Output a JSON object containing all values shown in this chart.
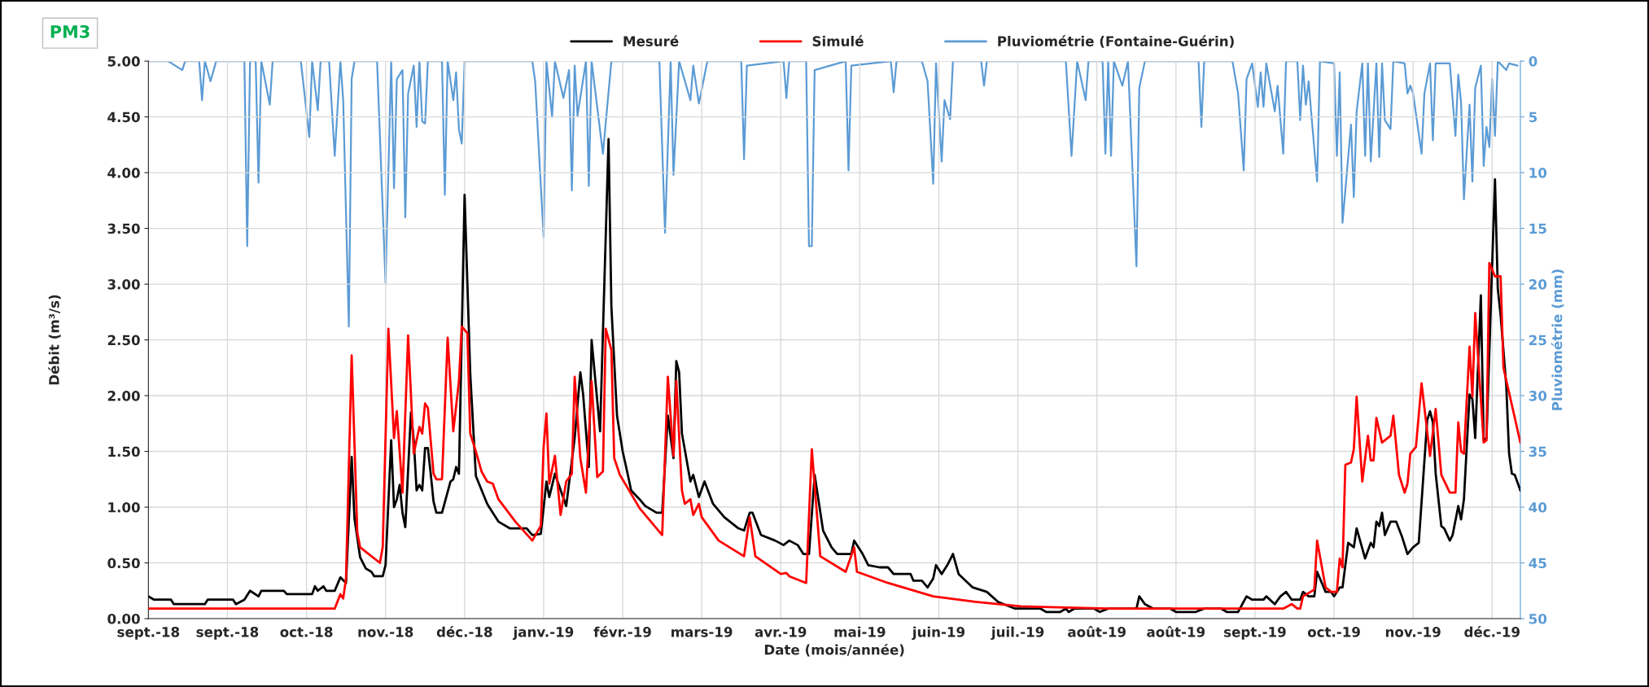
{
  "chart_data": {
    "type": "line",
    "title": "PM3",
    "xlabel": "Date (mois/année)",
    "ylabel": "Débit (m³/s)",
    "y2label": "Pluviométrie (mm)",
    "xlim": [
      "2018-09-01",
      "2019-12-31"
    ],
    "xticks": [
      {
        "value": "2018-09-01",
        "label": "sept.-18"
      },
      {
        "value": "2018-09-29",
        "label": "sept.-18"
      },
      {
        "value": "2018-10-27",
        "label": "oct.-18"
      },
      {
        "value": "2018-11-24",
        "label": "nov.-18"
      },
      {
        "value": "2018-12-22",
        "label": "déc.-18"
      },
      {
        "value": "2019-01-19",
        "label": "janv.-19"
      },
      {
        "value": "2019-02-16",
        "label": "févr.-19"
      },
      {
        "value": "2019-03-16",
        "label": "mars-19"
      },
      {
        "value": "2019-04-13",
        "label": "avr.-19"
      },
      {
        "value": "2019-05-11",
        "label": "mai-19"
      },
      {
        "value": "2019-06-08",
        "label": "juin-19"
      },
      {
        "value": "2019-07-06",
        "label": "juil.-19"
      },
      {
        "value": "2019-08-03",
        "label": "août-19"
      },
      {
        "value": "2019-08-31",
        "label": "août-19"
      },
      {
        "value": "2019-09-28",
        "label": "sept.-19"
      },
      {
        "value": "2019-10-26",
        "label": "oct.-19"
      },
      {
        "value": "2019-11-23",
        "label": "nov.-19"
      },
      {
        "value": "2019-12-21",
        "label": "déc.-19"
      }
    ],
    "ylim": [
      0,
      5
    ],
    "yticks": [
      {
        "value": 0,
        "label": "0.00"
      },
      {
        "value": 0.5,
        "label": "0.50"
      },
      {
        "value": 1,
        "label": "1.00"
      },
      {
        "value": 1.5,
        "label": "1.50"
      },
      {
        "value": 2,
        "label": "2.00"
      },
      {
        "value": 2.5,
        "label": "2.50"
      },
      {
        "value": 3,
        "label": "3.00"
      },
      {
        "value": 3.5,
        "label": "3.50"
      },
      {
        "value": 4,
        "label": "4.00"
      },
      {
        "value": 4.5,
        "label": "4.50"
      },
      {
        "value": 5,
        "label": "5.00"
      }
    ],
    "y2lim": [
      50,
      0
    ],
    "y2ticks": [
      0,
      5,
      10,
      15,
      20,
      25,
      30,
      35,
      40,
      45,
      50
    ],
    "grid": true,
    "legend": "top",
    "marker": "none",
    "line_style": "solid",
    "series": [
      {
        "name": "Mesuré",
        "color": "#000000",
        "x": [
          "2018-09-01",
          "2018-09-03",
          "2018-09-09",
          "2018-09-10",
          "2018-09-21",
          "2018-09-22",
          "2018-10-01",
          "2018-10-02",
          "2018-10-05",
          "2018-10-07",
          "2018-10-10",
          "2018-10-11",
          "2018-10-19",
          "2018-10-20",
          "2018-10-29",
          "2018-10-30",
          "2018-10-31",
          "2018-11-02",
          "2018-11-03",
          "2018-11-06",
          "2018-11-08",
          "2018-11-10",
          "2018-11-12",
          "2018-11-13",
          "2018-11-15",
          "2018-11-17",
          "2018-11-19",
          "2018-11-20",
          "2018-11-23",
          "2018-11-24",
          "2018-11-26",
          "2018-11-27",
          "2018-11-28",
          "2018-11-29",
          "2018-11-30",
          "2018-12-01",
          "2018-12-03",
          "2018-12-04",
          "2018-12-05",
          "2018-12-06",
          "2018-12-07",
          "2018-12-08",
          "2018-12-09",
          "2018-12-10",
          "2018-12-11",
          "2018-12-12",
          "2018-12-14",
          "2018-12-17",
          "2018-12-18",
          "2018-12-19",
          "2018-12-20",
          "2018-12-22",
          "2018-12-24",
          "2018-12-26",
          "2018-12-30",
          "2019-01-01",
          "2019-01-03",
          "2019-01-07",
          "2019-01-13",
          "2019-01-15",
          "2019-01-18",
          "2019-01-20",
          "2019-01-21",
          "2019-01-23",
          "2019-01-27",
          "2019-01-30",
          "2019-02-01",
          "2019-02-02",
          "2019-02-04",
          "2019-02-05",
          "2019-02-08",
          "2019-02-09",
          "2019-02-11",
          "2019-02-12",
          "2019-02-14",
          "2019-02-16",
          "2019-02-18",
          "2019-02-19",
          "2019-02-22",
          "2019-02-24",
          "2019-02-28",
          "2019-03-02",
          "2019-03-04",
          "2019-03-06",
          "2019-03-07",
          "2019-03-08",
          "2019-03-09",
          "2019-03-12",
          "2019-03-13",
          "2019-03-15",
          "2019-03-17",
          "2019-03-20",
          "2019-03-24",
          "2019-03-29",
          "2019-03-31",
          "2019-04-02",
          "2019-04-03",
          "2019-04-06",
          "2019-04-11",
          "2019-04-14",
          "2019-04-16",
          "2019-04-19",
          "2019-04-21",
          "2019-04-23",
          "2019-04-25",
          "2019-04-28",
          "2019-05-01",
          "2019-05-03",
          "2019-05-08",
          "2019-05-09",
          "2019-05-12",
          "2019-05-14",
          "2019-05-18",
          "2019-05-21",
          "2019-05-23",
          "2019-05-29",
          "2019-05-30",
          "2019-06-02",
          "2019-06-04",
          "2019-06-06",
          "2019-06-07",
          "2019-06-09",
          "2019-06-11",
          "2019-06-13",
          "2019-06-15",
          "2019-06-20",
          "2019-06-25",
          "2019-06-29",
          "2019-07-01",
          "2019-07-05",
          "2019-07-14",
          "2019-07-16",
          "2019-07-21",
          "2019-07-23",
          "2019-07-24",
          "2019-07-26",
          "2019-08-02",
          "2019-08-04",
          "2019-08-07",
          "2019-08-17",
          "2019-08-18",
          "2019-08-20",
          "2019-08-23",
          "2019-08-29",
          "2019-08-31",
          "2019-09-07",
          "2019-09-10",
          "2019-09-16",
          "2019-09-18",
          "2019-09-22",
          "2019-09-25",
          "2019-09-27",
          "2019-10-01",
          "2019-10-02",
          "2019-10-05",
          "2019-10-07",
          "2019-10-09",
          "2019-10-11",
          "2019-10-14",
          "2019-10-15",
          "2019-10-17",
          "2019-10-19",
          "2019-10-20",
          "2019-10-23",
          "2019-10-25",
          "2019-10-26",
          "2019-10-28",
          "2019-10-29",
          "2019-10-31",
          "2019-11-02",
          "2019-11-03",
          "2019-11-06",
          "2019-11-08",
          "2019-11-09",
          "2019-11-10",
          "2019-11-11",
          "2019-11-12",
          "2019-11-13",
          "2019-11-15",
          "2019-11-17",
          "2019-11-19",
          "2019-11-21",
          "2019-11-23",
          "2019-11-25",
          "2019-11-28",
          "2019-11-29",
          "2019-11-30",
          "2019-12-01",
          "2019-12-03",
          "2019-12-04",
          "2019-12-06",
          "2019-12-07",
          "2019-12-09",
          "2019-12-10",
          "2019-12-11",
          "2019-12-13",
          "2019-12-14",
          "2019-12-15",
          "2019-12-17",
          "2019-12-18",
          "2019-12-19",
          "2019-12-22",
          "2019-12-23",
          "2019-12-24",
          "2019-12-26",
          "2019-12-27",
          "2019-12-28",
          "2019-12-29",
          "2019-12-31"
        ],
        "values": [
          0.2,
          0.17,
          0.17,
          0.13,
          0.13,
          0.17,
          0.17,
          0.13,
          0.17,
          0.25,
          0.2,
          0.25,
          0.25,
          0.22,
          0.22,
          0.29,
          0.25,
          0.29,
          0.25,
          0.25,
          0.37,
          0.32,
          1.45,
          0.9,
          0.55,
          0.45,
          0.42,
          0.38,
          0.38,
          0.48,
          1.6,
          1.0,
          1.07,
          1.2,
          0.95,
          0.82,
          1.85,
          1.6,
          1.15,
          1.2,
          1.15,
          1.53,
          1.53,
          1.3,
          1.05,
          0.95,
          0.95,
          1.23,
          1.25,
          1.36,
          1.3,
          3.8,
          2.2,
          1.28,
          1.03,
          0.95,
          0.87,
          0.81,
          0.81,
          0.75,
          0.76,
          1.23,
          1.09,
          1.3,
          1.01,
          1.62,
          2.21,
          2.01,
          1.36,
          2.5,
          1.68,
          2.56,
          4.3,
          2.8,
          1.82,
          1.5,
          1.27,
          1.15,
          1.07,
          1.01,
          0.95,
          0.95,
          1.82,
          1.44,
          2.31,
          2.21,
          1.66,
          1.23,
          1.29,
          1.09,
          1.23,
          1.03,
          0.91,
          0.81,
          0.79,
          0.95,
          0.95,
          0.75,
          0.7,
          0.66,
          0.7,
          0.66,
          0.58,
          0.58,
          1.29,
          0.79,
          0.64,
          0.58,
          0.58,
          0.7,
          0.58,
          0.48,
          0.46,
          0.46,
          0.4,
          0.4,
          0.34,
          0.34,
          0.28,
          0.36,
          0.48,
          0.4,
          0.48,
          0.58,
          0.4,
          0.28,
          0.24,
          0.15,
          0.13,
          0.09,
          0.09,
          0.06,
          0.06,
          0.09,
          0.06,
          0.09,
          0.09,
          0.06,
          0.09,
          0.09,
          0.2,
          0.13,
          0.09,
          0.09,
          0.06,
          0.06,
          0.09,
          0.09,
          0.06,
          0.06,
          0.2,
          0.17,
          0.17,
          0.2,
          0.13,
          0.2,
          0.24,
          0.17,
          0.17,
          0.24,
          0.2,
          0.2,
          0.42,
          0.24,
          0.24,
          0.2,
          0.28,
          0.28,
          0.68,
          0.64,
          0.81,
          0.54,
          0.68,
          0.64,
          0.87,
          0.83,
          0.95,
          0.75,
          0.87,
          0.87,
          0.74,
          0.58,
          0.64,
          0.68,
          1.78,
          1.86,
          1.76,
          1.3,
          0.83,
          0.81,
          0.7,
          0.75,
          1.01,
          0.89,
          1.07,
          2.01,
          1.97,
          1.62,
          2.9,
          1.6,
          1.62,
          3.94,
          2.96,
          2.72,
          2.09,
          1.48,
          1.3,
          1.29,
          1.15
        ]
      },
      {
        "name": "Simulé",
        "color": "#ff0000",
        "x": [
          "2018-09-01",
          "2018-11-06",
          "2018-11-08",
          "2018-11-09",
          "2018-11-10",
          "2018-11-12",
          "2018-11-14",
          "2018-11-15",
          "2018-11-22",
          "2018-11-23",
          "2018-11-25",
          "2018-11-27",
          "2018-11-28",
          "2018-11-30",
          "2018-12-02",
          "2018-12-04",
          "2018-12-06",
          "2018-12-07",
          "2018-12-08",
          "2018-12-09",
          "2018-12-11",
          "2018-12-12",
          "2018-12-14",
          "2018-12-16",
          "2018-12-18",
          "2018-12-20",
          "2018-12-21",
          "2018-12-23",
          "2018-12-24",
          "2018-12-26",
          "2018-12-28",
          "2018-12-30",
          "2019-01-01",
          "2019-01-03",
          "2019-01-09",
          "2019-01-15",
          "2019-01-17",
          "2019-01-18",
          "2019-01-19",
          "2019-01-20",
          "2019-01-21",
          "2019-01-23",
          "2019-01-25",
          "2019-01-27",
          "2019-01-29",
          "2019-01-30",
          "2019-02-01",
          "2019-02-03",
          "2019-02-05",
          "2019-02-07",
          "2019-02-09",
          "2019-02-10",
          "2019-02-12",
          "2019-02-13",
          "2019-02-15",
          "2019-02-22",
          "2019-03-02",
          "2019-03-04",
          "2019-03-06",
          "2019-03-07",
          "2019-03-09",
          "2019-03-10",
          "2019-03-12",
          "2019-03-13",
          "2019-03-15",
          "2019-03-16",
          "2019-03-22",
          "2019-03-31",
          "2019-04-02",
          "2019-04-04",
          "2019-04-13",
          "2019-04-15",
          "2019-04-16",
          "2019-04-22",
          "2019-04-24",
          "2019-04-27",
          "2019-05-06",
          "2019-05-09",
          "2019-05-10",
          "2019-05-21",
          "2019-06-06",
          "2019-06-21",
          "2019-07-07",
          "2019-08-07",
          "2019-10-08",
          "2019-10-11",
          "2019-10-13",
          "2019-10-14",
          "2019-10-15",
          "2019-10-19",
          "2019-10-20",
          "2019-10-23",
          "2019-10-25",
          "2019-10-27",
          "2019-10-28",
          "2019-10-29",
          "2019-10-30",
          "2019-11-01",
          "2019-11-02",
          "2019-11-03",
          "2019-11-05",
          "2019-11-07",
          "2019-11-08",
          "2019-11-09",
          "2019-11-10",
          "2019-11-12",
          "2019-11-13",
          "2019-11-15",
          "2019-11-16",
          "2019-11-18",
          "2019-11-20",
          "2019-11-21",
          "2019-11-22",
          "2019-11-24",
          "2019-11-26",
          "2019-11-29",
          "2019-12-01",
          "2019-12-03",
          "2019-12-06",
          "2019-12-08",
          "2019-12-09",
          "2019-12-10",
          "2019-12-11",
          "2019-12-13",
          "2019-12-14",
          "2019-12-15",
          "2019-12-18",
          "2019-12-19",
          "2019-12-20",
          "2019-12-22",
          "2019-12-24",
          "2019-12-25",
          "2019-12-31"
        ],
        "values": [
          0.09,
          0.09,
          0.22,
          0.18,
          0.36,
          2.36,
          0.77,
          0.64,
          0.5,
          0.64,
          2.6,
          1.62,
          1.86,
          1.13,
          2.54,
          1.48,
          1.72,
          1.66,
          1.93,
          1.89,
          1.3,
          1.25,
          1.25,
          2.52,
          1.68,
          2.13,
          2.62,
          2.56,
          1.66,
          1.5,
          1.32,
          1.23,
          1.21,
          1.07,
          0.87,
          0.7,
          0.79,
          0.83,
          1.54,
          1.84,
          1.21,
          1.46,
          0.93,
          1.23,
          1.3,
          2.17,
          1.44,
          1.13,
          2.13,
          1.27,
          1.32,
          2.6,
          2.41,
          1.44,
          1.29,
          0.99,
          0.75,
          2.17,
          1.46,
          2.13,
          1.15,
          1.03,
          1.07,
          0.93,
          1.03,
          0.91,
          0.7,
          0.56,
          0.91,
          0.56,
          0.4,
          0.41,
          0.38,
          0.32,
          1.52,
          0.56,
          0.42,
          0.64,
          0.42,
          0.32,
          0.2,
          0.15,
          0.11,
          0.09,
          0.09,
          0.13,
          0.09,
          0.09,
          0.2,
          0.26,
          0.7,
          0.28,
          0.24,
          0.24,
          0.54,
          0.46,
          1.38,
          1.4,
          1.52,
          1.99,
          1.23,
          1.64,
          1.42,
          1.42,
          1.8,
          1.58,
          1.6,
          1.64,
          1.82,
          1.29,
          1.13,
          1.21,
          1.48,
          1.54,
          2.11,
          1.46,
          1.88,
          1.29,
          1.13,
          1.13,
          1.76,
          1.5,
          1.48,
          2.44,
          1.99,
          2.74,
          1.58,
          1.6,
          3.19,
          3.07,
          3.07,
          2.25,
          1.58
        ]
      },
      {
        "name": "Pluviométrie (Fontaine-Guérin)",
        "color": "#5b9bd5",
        "axis": "y2",
        "x": [
          "2018-09-01",
          "2018-09-08",
          "2018-09-13",
          "2018-09-14",
          "2018-09-19",
          "2018-09-20",
          "2018-09-21",
          "2018-09-23",
          "2018-09-25",
          "2018-10-05",
          "2018-10-06",
          "2018-10-07",
          "2018-10-09",
          "2018-10-10",
          "2018-10-11",
          "2018-10-14",
          "2018-10-15",
          "2018-10-25",
          "2018-10-28",
          "2018-10-29",
          "2018-10-31",
          "2018-11-01",
          "2018-11-04",
          "2018-11-06",
          "2018-11-08",
          "2018-11-09",
          "2018-11-11",
          "2018-11-12",
          "2018-11-13",
          "2018-11-21",
          "2018-11-24",
          "2018-11-26",
          "2018-11-27",
          "2018-11-28",
          "2018-11-30",
          "2018-12-01",
          "2018-12-02",
          "2018-12-04",
          "2018-12-05",
          "2018-12-06",
          "2018-12-07",
          "2018-12-08",
          "2018-12-09",
          "2018-12-14",
          "2018-12-15",
          "2018-12-16",
          "2018-12-18",
          "2018-12-19",
          "2018-12-20",
          "2018-12-21",
          "2018-12-22",
          "2019-01-15",
          "2019-01-16",
          "2019-01-19",
          "2019-01-20",
          "2019-01-22",
          "2019-01-23",
          "2019-01-26",
          "2019-01-28",
          "2019-01-29",
          "2019-01-30",
          "2019-01-31",
          "2019-02-03",
          "2019-02-04",
          "2019-02-05",
          "2019-02-09",
          "2019-02-12",
          "2019-03-01",
          "2019-03-03",
          "2019-03-05",
          "2019-03-06",
          "2019-03-08",
          "2019-03-12",
          "2019-03-13",
          "2019-03-15",
          "2019-03-18",
          "2019-03-30",
          "2019-03-31",
          "2019-04-01",
          "2019-04-14",
          "2019-04-15",
          "2019-04-16",
          "2019-04-22",
          "2019-04-23",
          "2019-04-24",
          "2019-04-25",
          "2019-05-06",
          "2019-05-07",
          "2019-05-08",
          "2019-05-22",
          "2019-05-23",
          "2019-05-24",
          "2019-06-02",
          "2019-06-04",
          "2019-06-06",
          "2019-06-07",
          "2019-06-09",
          "2019-06-10",
          "2019-06-12",
          "2019-06-13",
          "2019-06-23",
          "2019-06-24",
          "2019-06-25",
          "2019-07-23",
          "2019-07-25",
          "2019-07-27",
          "2019-07-30",
          "2019-07-31",
          "2019-08-05",
          "2019-08-06",
          "2019-08-07",
          "2019-08-08",
          "2019-08-09",
          "2019-08-12",
          "2019-08-14",
          "2019-08-17",
          "2019-08-18",
          "2019-08-20",
          "2019-09-08",
          "2019-09-09",
          "2019-09-10",
          "2019-09-20",
          "2019-09-22",
          "2019-09-24",
          "2019-09-25",
          "2019-09-27",
          "2019-09-29",
          "2019-09-30",
          "2019-10-01",
          "2019-10-02",
          "2019-10-05",
          "2019-10-06",
          "2019-10-08",
          "2019-10-09",
          "2019-10-13",
          "2019-10-14",
          "2019-10-15",
          "2019-10-16",
          "2019-10-17",
          "2019-10-18",
          "2019-10-20",
          "2019-10-21",
          "2019-10-26",
          "2019-10-27",
          "2019-10-28",
          "2019-10-29",
          "2019-11-01",
          "2019-11-02",
          "2019-11-03",
          "2019-11-05",
          "2019-11-06",
          "2019-11-07",
          "2019-11-08",
          "2019-11-10",
          "2019-11-11",
          "2019-11-12",
          "2019-11-13",
          "2019-11-15",
          "2019-11-16",
          "2019-11-20",
          "2019-11-21",
          "2019-11-22",
          "2019-11-23",
          "2019-11-26",
          "2019-11-27",
          "2019-11-29",
          "2019-11-30",
          "2019-12-01",
          "2019-12-06",
          "2019-12-08",
          "2019-12-09",
          "2019-12-10",
          "2019-12-11",
          "2019-12-13",
          "2019-12-14",
          "2019-12-15",
          "2019-12-17",
          "2019-12-18",
          "2019-12-19",
          "2019-12-20",
          "2019-12-21",
          "2019-12-22",
          "2019-12-23",
          "2019-12-26",
          "2019-12-27",
          "2019-12-30"
        ],
        "values": [
          0,
          0,
          0.8,
          0,
          0,
          3.5,
          0,
          1.8,
          0,
          0,
          16.6,
          0,
          0,
          10.9,
          0,
          3.9,
          0,
          0,
          6.8,
          0,
          4.4,
          0,
          0,
          8.5,
          0,
          3.5,
          23.8,
          1.6,
          0,
          0,
          19.9,
          0,
          11.4,
          1.6,
          0.8,
          14.0,
          2.9,
          0.4,
          5.9,
          0,
          5.4,
          5.6,
          0,
          0,
          12.0,
          0,
          3.5,
          1.0,
          6.1,
          7.4,
          0,
          0,
          1.8,
          15.8,
          0,
          5.0,
          0,
          3.3,
          0.8,
          11.6,
          0.4,
          4.9,
          0,
          11.2,
          0,
          8.3,
          0,
          0,
          15.4,
          0,
          10.2,
          0,
          3.5,
          0.4,
          3.8,
          0,
          0,
          8.8,
          0.4,
          0,
          3.3,
          0,
          0,
          16.6,
          16.6,
          0.8,
          0,
          9.8,
          0.4,
          0,
          2.8,
          0,
          0,
          1.8,
          11.0,
          0.2,
          9.0,
          3.5,
          5.2,
          0,
          0,
          2.2,
          0,
          0,
          8.5,
          0,
          3.5,
          0,
          0,
          8.3,
          0,
          8.5,
          0,
          2.2,
          0,
          18.4,
          2.4,
          0,
          0,
          5.9,
          0,
          0,
          2.9,
          9.8,
          1.6,
          0.2,
          4.1,
          1.0,
          4.1,
          0.2,
          4.5,
          2.2,
          8.3,
          0,
          0,
          5.3,
          0.4,
          3.9,
          1.8,
          4.9,
          10.8,
          0,
          0.2,
          8.5,
          1.0,
          14.5,
          5.7,
          12.2,
          4.5,
          0.2,
          8.5,
          0.2,
          9.0,
          0.2,
          8.6,
          0.2,
          5.3,
          6.1,
          0,
          0.2,
          2.9,
          2.2,
          2.9,
          8.3,
          2.9,
          0.2,
          7.1,
          0.2,
          0.2,
          6.7,
          1.2,
          3.7,
          12.4,
          3.9,
          10.8,
          2.4,
          0.4,
          9.4,
          5.9,
          7.7,
          1.6,
          6.7,
          0,
          0.8,
          0.2,
          0.4
        ]
      }
    ]
  }
}
